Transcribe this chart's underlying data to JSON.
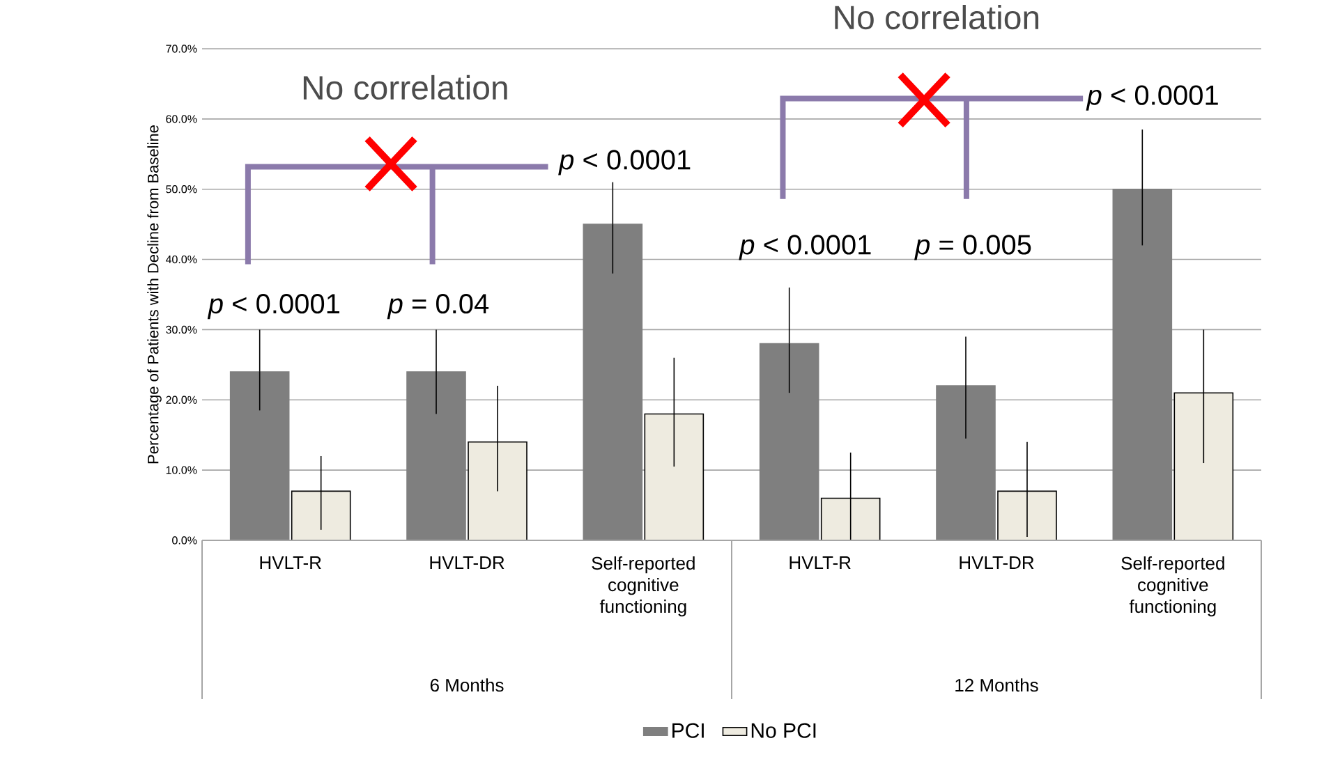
{
  "chart_data": {
    "type": "bar",
    "ylabel": "Percentage of Patients with Decline from Baseline",
    "categories": [
      "HVLT-R",
      "HVLT-DR",
      "Self-reported cognitive functioning",
      "HVLT-R",
      "HVLT-DR",
      "Self-reported cognitive functioning"
    ],
    "series": [
      {
        "name": "PCI",
        "color": "#7f7f7f",
        "values": [
          24,
          24,
          45,
          28,
          22,
          50
        ],
        "errors": [
          [
            18.5,
            30
          ],
          [
            18,
            30
          ],
          [
            38,
            51
          ],
          [
            21,
            36
          ],
          [
            14.5,
            29
          ],
          [
            42,
            58.5
          ]
        ]
      },
      {
        "name": "No PCI",
        "color": "#eeebe0",
        "values": [
          7,
          14,
          18,
          6,
          7,
          21
        ],
        "errors": [
          [
            1.5,
            12
          ],
          [
            7,
            22
          ],
          [
            10.5,
            26
          ],
          [
            0,
            12.5
          ],
          [
            0.5,
            14
          ],
          [
            11,
            30
          ]
        ]
      }
    ],
    "ylim": [
      0,
      70
    ],
    "yticks": [
      {
        "value": 0,
        "label": "0.0%"
      },
      {
        "value": 10,
        "label": "10.0%"
      },
      {
        "value": 20,
        "label": "20.0%"
      },
      {
        "value": 30,
        "label": "30.0%"
      },
      {
        "value": 40,
        "label": "40.0%"
      },
      {
        "value": 50,
        "label": "50.0%"
      },
      {
        "value": 60,
        "label": "60.0%"
      },
      {
        "value": 70,
        "label": "70.0%"
      }
    ],
    "grid": "y",
    "legend": "bottom",
    "annotations": [
      "No correlation",
      "No correlation",
      "*p* < 0.0001",
      "*p* = 0.04",
      "*p* < 0.0001",
      "*p* < 0.0001",
      "*p* = 0.005",
      "*p* < 0.0001",
      "6 Months",
      "12 Months"
    ]
  }
}
